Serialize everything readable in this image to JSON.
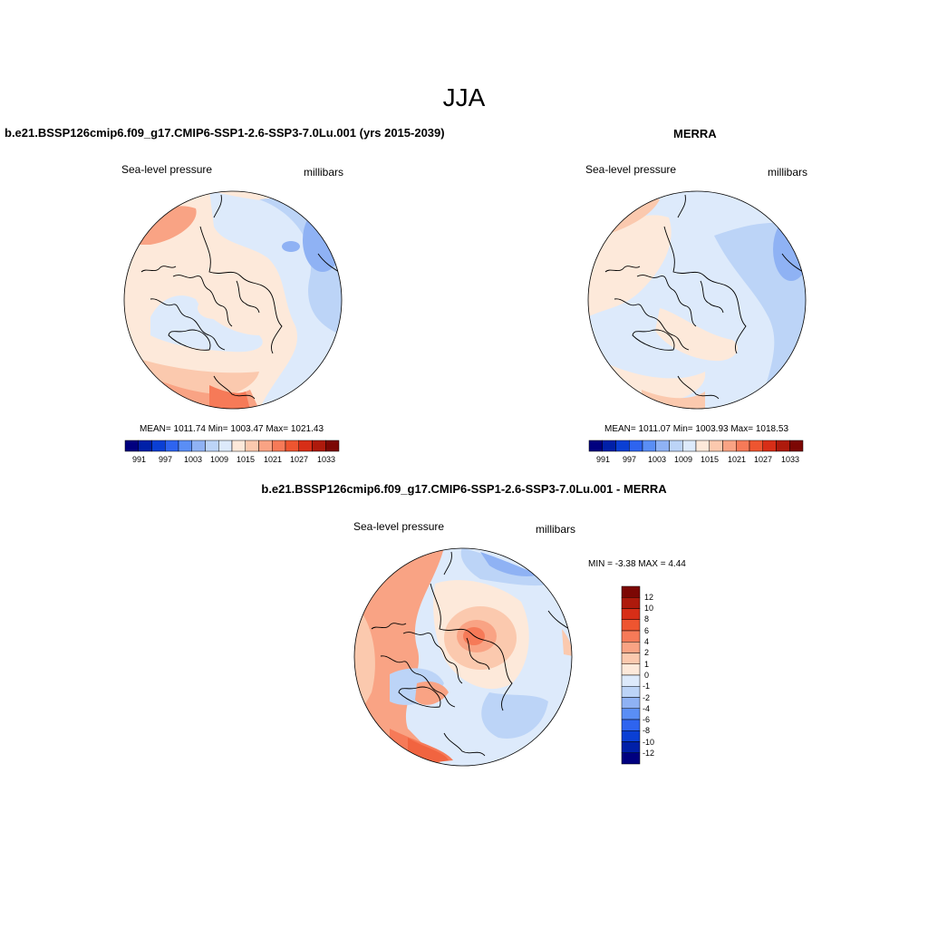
{
  "figure": {
    "title": "JJA",
    "panels": [
      {
        "title": "b.e21.BSSP126cmip6.f09_g17.CMIP6-SSP1-2.6-SSP3-7.0Lu.001 (yrs 2015-2039)",
        "variable": "Sea-level pressure",
        "units": "millibars",
        "stats": "MEAN= 1011.74  Min= 1003.47  Max= 1021.43"
      },
      {
        "title": "MERRA",
        "variable": "Sea-level pressure",
        "units": "millibars",
        "stats": "MEAN= 1011.07  Min= 1003.93  Max= 1018.53"
      },
      {
        "title": "b.e21.BSSP126cmip6.f09_g17.CMIP6-SSP1-2.6-SSP3-7.0Lu.001 - MERRA",
        "variable": "Sea-level pressure",
        "units": "millibars",
        "stats": "MIN =  -3.38 MAX =   4.44"
      }
    ]
  },
  "colorbars": {
    "field": {
      "tick_labels": [
        "991",
        "997",
        "1003",
        "1009",
        "1015",
        "1021",
        "1027",
        "1033"
      ],
      "colors": [
        "#00007f",
        "#0020a8",
        "#0a3fd4",
        "#2e64ef",
        "#5a8ef5",
        "#8fb2f4",
        "#bcd4f7",
        "#ddeafb",
        "#fde9da",
        "#fbc9ae",
        "#f9a384",
        "#f67a58",
        "#ee5530",
        "#d72e17",
        "#ae1a0c",
        "#7c0704"
      ]
    },
    "difference": {
      "tick_labels": [
        "12",
        "10",
        "8",
        "6",
        "4",
        "2",
        "1",
        "0",
        "-1",
        "-2",
        "-4",
        "-6",
        "-8",
        "-10",
        "-12"
      ],
      "colors": [
        "#7c0704",
        "#ae1a0c",
        "#d72e17",
        "#ee5530",
        "#f67a58",
        "#f9a384",
        "#fbc9ae",
        "#fde9da",
        "#ddeafb",
        "#bcd4f7",
        "#8fb2f4",
        "#5a8ef5",
        "#2e64ef",
        "#0a3fd4",
        "#0020a8",
        "#00007f"
      ]
    }
  }
}
